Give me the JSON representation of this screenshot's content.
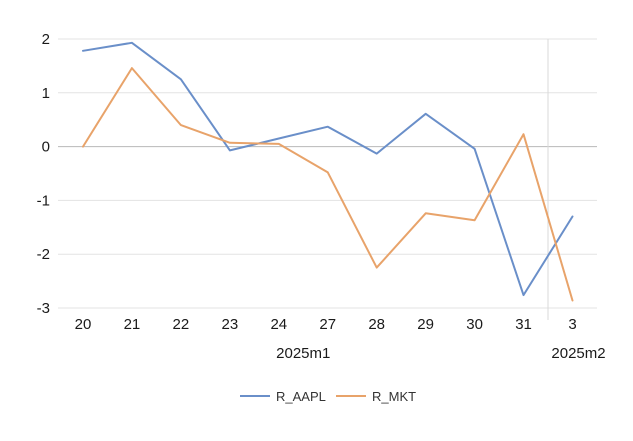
{
  "chart_data": {
    "type": "line",
    "categories": [
      "20",
      "21",
      "22",
      "23",
      "24",
      "27",
      "28",
      "29",
      "30",
      "31",
      "3"
    ],
    "category_groups": [
      {
        "label": "2025m1",
        "from": 0,
        "to": 9
      },
      {
        "label": "2025m2",
        "from": 10,
        "to": 10
      }
    ],
    "series": [
      {
        "name": "R_AAPL",
        "color": "#6a8fc9",
        "values": [
          1.78,
          1.93,
          1.25,
          -0.07,
          0.15,
          0.37,
          -0.13,
          0.61,
          -0.04,
          -2.76,
          -1.3
        ]
      },
      {
        "name": "R_MKT",
        "color": "#e8a36a",
        "values": [
          0.0,
          1.46,
          0.4,
          0.07,
          0.05,
          -0.48,
          -2.25,
          -1.24,
          -1.37,
          0.23,
          -2.86
        ]
      }
    ],
    "ylim": [
      -3,
      2
    ],
    "yticks": [
      "2",
      "1",
      "0",
      "-1",
      "-2",
      "-3"
    ],
    "grid": true,
    "legend": "bottom",
    "title": "",
    "xlabel": "",
    "ylabel": ""
  }
}
